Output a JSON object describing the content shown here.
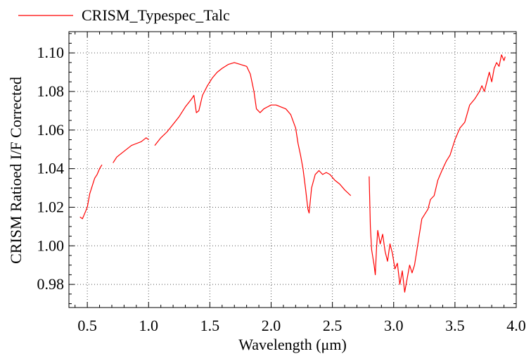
{
  "chart_data": {
    "type": "line",
    "title": "",
    "xlabel": "Wavelength (μm)",
    "ylabel": "CRISM Ratioed I/F Corrected",
    "xlim": [
      0.35,
      4.0
    ],
    "ylim": [
      0.968,
      1.111
    ],
    "xticks": [
      0.5,
      1.0,
      1.5,
      2.0,
      2.5,
      3.0,
      3.5,
      4.0
    ],
    "xtick_labels": [
      "0.5",
      "1.0",
      "1.5",
      "2.0",
      "2.5",
      "3.0",
      "3.5",
      "4.0"
    ],
    "yticks": [
      0.98,
      1.0,
      1.02,
      1.04,
      1.06,
      1.08,
      1.1
    ],
    "ytick_labels": [
      "0.98",
      "1.00",
      "1.02",
      "1.04",
      "1.06",
      "1.08",
      "1.10"
    ],
    "grid": true,
    "legend_position": "top-left",
    "series": [
      {
        "name": "CRISM_Typespec_Talc",
        "color": "#ff0000",
        "segments": [
          [
            [
              0.44,
              1.015
            ],
            [
              0.46,
              1.014
            ],
            [
              0.48,
              1.017
            ],
            [
              0.5,
              1.02
            ],
            [
              0.52,
              1.027
            ],
            [
              0.54,
              1.031
            ],
            [
              0.56,
              1.035
            ],
            [
              0.58,
              1.037
            ],
            [
              0.6,
              1.04
            ],
            [
              0.62,
              1.042
            ]
          ],
          [
            [
              0.71,
              1.043
            ],
            [
              0.74,
              1.046
            ],
            [
              0.78,
              1.048
            ],
            [
              0.82,
              1.05
            ],
            [
              0.86,
              1.052
            ],
            [
              0.9,
              1.053
            ],
            [
              0.94,
              1.054
            ],
            [
              0.98,
              1.056
            ],
            [
              1.0,
              1.055
            ]
          ],
          [
            [
              1.05,
              1.052
            ],
            [
              1.1,
              1.056
            ],
            [
              1.15,
              1.059
            ],
            [
              1.2,
              1.063
            ],
            [
              1.25,
              1.067
            ],
            [
              1.3,
              1.072
            ],
            [
              1.35,
              1.076
            ],
            [
              1.37,
              1.078
            ],
            [
              1.39,
              1.069
            ],
            [
              1.41,
              1.07
            ],
            [
              1.44,
              1.078
            ],
            [
              1.48,
              1.083
            ],
            [
              1.52,
              1.087
            ],
            [
              1.56,
              1.09
            ],
            [
              1.6,
              1.092
            ],
            [
              1.65,
              1.094
            ],
            [
              1.7,
              1.095
            ],
            [
              1.75,
              1.094
            ],
            [
              1.8,
              1.093
            ],
            [
              1.83,
              1.089
            ],
            [
              1.86,
              1.08
            ],
            [
              1.88,
              1.071
            ],
            [
              1.91,
              1.069
            ],
            [
              1.94,
              1.071
            ],
            [
              1.97,
              1.072
            ],
            [
              2.0,
              1.073
            ],
            [
              2.04,
              1.073
            ],
            [
              2.08,
              1.072
            ],
            [
              2.12,
              1.071
            ],
            [
              2.16,
              1.068
            ],
            [
              2.2,
              1.061
            ],
            [
              2.22,
              1.053
            ],
            [
              2.24,
              1.047
            ],
            [
              2.26,
              1.04
            ],
            [
              2.28,
              1.03
            ],
            [
              2.3,
              1.019
            ],
            [
              2.31,
              1.017
            ],
            [
              2.33,
              1.03
            ],
            [
              2.36,
              1.037
            ],
            [
              2.39,
              1.039
            ],
            [
              2.42,
              1.037
            ],
            [
              2.45,
              1.038
            ],
            [
              2.48,
              1.037
            ],
            [
              2.52,
              1.034
            ],
            [
              2.56,
              1.032
            ],
            [
              2.6,
              1.029
            ],
            [
              2.65,
              1.026
            ]
          ],
          [
            [
              2.8,
              1.036
            ],
            [
              2.81,
              1.01
            ],
            [
              2.82,
              0.998
            ],
            [
              2.84,
              0.99
            ],
            [
              2.85,
              0.985
            ],
            [
              2.86,
              0.999
            ],
            [
              2.87,
              1.008
            ],
            [
              2.89,
              1.001
            ],
            [
              2.91,
              1.006
            ],
            [
              2.93,
              0.997
            ],
            [
              2.95,
              0.992
            ],
            [
              2.97,
              1.001
            ],
            [
              2.99,
              0.996
            ],
            [
              3.01,
              0.988
            ],
            [
              3.03,
              0.991
            ],
            [
              3.05,
              0.98
            ],
            [
              3.07,
              0.987
            ],
            [
              3.09,
              0.976
            ],
            [
              3.11,
              0.983
            ],
            [
              3.13,
              0.99
            ],
            [
              3.15,
              0.986
            ],
            [
              3.17,
              0.99
            ],
            [
              3.19,
              0.998
            ],
            [
              3.21,
              1.006
            ],
            [
              3.23,
              1.014
            ],
            [
              3.25,
              1.016
            ],
            [
              3.28,
              1.019
            ],
            [
              3.3,
              1.024
            ],
            [
              3.33,
              1.026
            ],
            [
              3.36,
              1.034
            ],
            [
              3.4,
              1.04
            ],
            [
              3.43,
              1.044
            ],
            [
              3.46,
              1.047
            ],
            [
              3.5,
              1.055
            ],
            [
              3.54,
              1.061
            ],
            [
              3.58,
              1.064
            ],
            [
              3.62,
              1.073
            ],
            [
              3.66,
              1.076
            ],
            [
              3.7,
              1.08
            ],
            [
              3.72,
              1.083
            ],
            [
              3.74,
              1.08
            ],
            [
              3.76,
              1.085
            ],
            [
              3.78,
              1.09
            ],
            [
              3.8,
              1.085
            ],
            [
              3.82,
              1.092
            ],
            [
              3.84,
              1.095
            ],
            [
              3.86,
              1.093
            ],
            [
              3.88,
              1.099
            ],
            [
              3.9,
              1.096
            ],
            [
              3.91,
              1.098
            ]
          ]
        ]
      }
    ]
  }
}
